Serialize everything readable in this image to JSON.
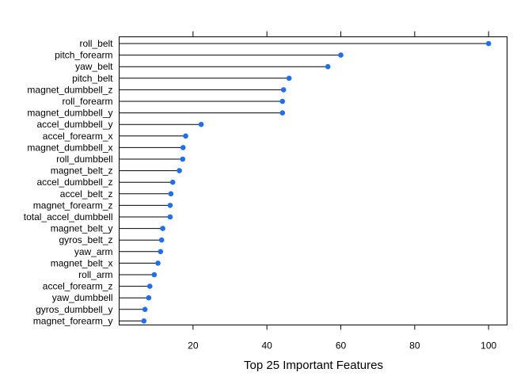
{
  "chart_data": {
    "type": "dotplot",
    "title": "",
    "xlabel": "Top 25 Important Features",
    "ylabel": "",
    "xlim": [
      0,
      105
    ],
    "xticks": [
      20,
      40,
      60,
      80,
      100
    ],
    "point_color": "#1e6ff2",
    "grid": false,
    "categories": [
      "roll_belt",
      "pitch_forearm",
      "yaw_belt",
      "pitch_belt",
      "magnet_dumbbell_z",
      "roll_forearm",
      "magnet_dumbbell_y",
      "accel_dumbbell_y",
      "accel_forearm_x",
      "magnet_dumbbell_x",
      "roll_dumbbell",
      "magnet_belt_z",
      "accel_dumbbell_z",
      "accel_belt_z",
      "magnet_forearm_z",
      "total_accel_dumbbell",
      "magnet_belt_y",
      "gyros_belt_z",
      "yaw_arm",
      "magnet_belt_x",
      "roll_arm",
      "accel_forearm_z",
      "yaw_dumbbell",
      "gyros_dumbbell_y",
      "magnet_forearm_y"
    ],
    "values": [
      100,
      60,
      56.5,
      46,
      44.5,
      44.2,
      44.2,
      22.2,
      18,
      17.3,
      17.2,
      16.3,
      14.5,
      14,
      13.8,
      13.8,
      11.8,
      11.5,
      11.2,
      10.5,
      9.5,
      8.3,
      8,
      7,
      6.7
    ]
  }
}
